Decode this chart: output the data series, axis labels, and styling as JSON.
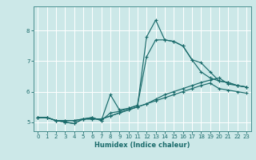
{
  "title": "",
  "xlabel": "Humidex (Indice chaleur)",
  "ylabel": "",
  "bg_color": "#cce8e8",
  "grid_color": "#ffffff",
  "line_color": "#1a6b6b",
  "spine_color": "#4a9090",
  "xlim": [
    -0.5,
    23.5
  ],
  "ylim": [
    4.7,
    8.8
  ],
  "xticks": [
    0,
    1,
    2,
    3,
    4,
    5,
    6,
    7,
    8,
    9,
    10,
    11,
    12,
    13,
    14,
    15,
    16,
    17,
    18,
    19,
    20,
    21,
    22,
    23
  ],
  "yticks": [
    5,
    6,
    7,
    8
  ],
  "lines": [
    {
      "x": [
        0,
        1,
        2,
        3,
        4,
        5,
        6,
        7,
        8,
        9,
        10,
        11,
        12,
        13,
        14,
        15,
        16,
        17,
        18,
        19,
        20,
        21,
        22,
        23
      ],
      "y": [
        5.15,
        5.15,
        5.05,
        5.0,
        4.95,
        5.1,
        5.15,
        5.05,
        5.9,
        5.4,
        5.45,
        5.55,
        7.8,
        8.35,
        7.7,
        7.65,
        7.5,
        7.05,
        6.95,
        6.65,
        6.35,
        6.3,
        6.2,
        6.15
      ]
    },
    {
      "x": [
        0,
        1,
        2,
        3,
        4,
        5,
        6,
        7,
        8,
        9,
        10,
        11,
        12,
        13,
        14,
        15,
        16,
        17,
        18,
        19,
        20,
        21,
        22,
        23
      ],
      "y": [
        5.15,
        5.15,
        5.05,
        5.0,
        4.95,
        5.1,
        5.15,
        5.05,
        5.3,
        5.35,
        5.45,
        5.55,
        7.15,
        7.7,
        7.7,
        7.65,
        7.5,
        7.05,
        6.65,
        6.45,
        6.35,
        6.3,
        6.2,
        6.15
      ]
    },
    {
      "x": [
        0,
        1,
        2,
        3,
        4,
        5,
        6,
        7,
        8,
        9,
        10,
        11,
        12,
        13,
        14,
        15,
        16,
        17,
        18,
        19,
        20,
        21,
        22,
        23
      ],
      "y": [
        5.15,
        5.15,
        5.05,
        5.05,
        5.05,
        5.1,
        5.1,
        5.1,
        5.2,
        5.3,
        5.4,
        5.5,
        5.6,
        5.75,
        5.9,
        6.0,
        6.1,
        6.2,
        6.3,
        6.38,
        6.45,
        6.25,
        6.2,
        6.15
      ]
    },
    {
      "x": [
        0,
        1,
        2,
        3,
        4,
        5,
        6,
        7,
        8,
        9,
        10,
        11,
        12,
        13,
        14,
        15,
        16,
        17,
        18,
        19,
        20,
        21,
        22,
        23
      ],
      "y": [
        5.15,
        5.15,
        5.05,
        5.05,
        5.05,
        5.1,
        5.1,
        5.1,
        5.2,
        5.3,
        5.4,
        5.5,
        5.6,
        5.7,
        5.8,
        5.9,
        6.0,
        6.1,
        6.2,
        6.28,
        6.1,
        6.05,
        6.0,
        5.95
      ]
    }
  ]
}
